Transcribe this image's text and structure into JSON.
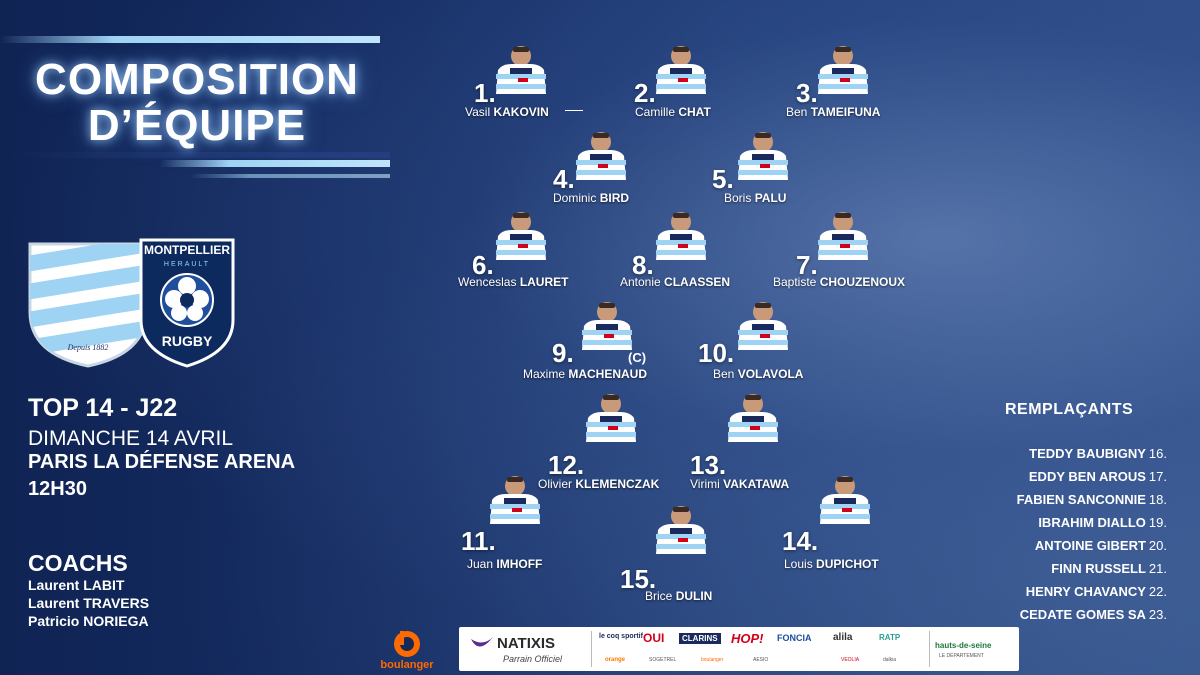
{
  "title": {
    "line1": "COMPOSITION",
    "line2": "D’ÉQUIPE"
  },
  "logos": {
    "home": {
      "name": "racing-92-logo",
      "motto": "Depuis 1882",
      "colors": [
        "#9fd3f3",
        "#ffffff"
      ]
    },
    "away": {
      "name": "montpellier-herault-logo",
      "top_text": "MONTPELLIER",
      "sub_text": "HERAULT",
      "bottom_text": "RUGBY",
      "color": "#1f4f9c"
    }
  },
  "match": {
    "competition": "TOP 14 - J22",
    "date": "DIMANCHE 14 AVRIL",
    "venue": "PARIS LA DÉFENSE ARENA",
    "time": "12H30"
  },
  "coaches": {
    "title": "COACHS",
    "names": [
      "Laurent LABIT",
      "Laurent TRAVERS",
      "Patricio NORIEGA"
    ]
  },
  "players": [
    {
      "number": "1.",
      "first": "Vasil",
      "last": "KAKOVIN"
    },
    {
      "number": "2.",
      "first": "Camille",
      "last": "CHAT"
    },
    {
      "number": "3.",
      "first": "Ben",
      "last": "TAMEIFUNA"
    },
    {
      "number": "4.",
      "first": "Dominic",
      "last": "BIRD"
    },
    {
      "number": "5.",
      "first": "Boris",
      "last": "PALU"
    },
    {
      "number": "6.",
      "first": "Wenceslas",
      "last": "LAURET"
    },
    {
      "number": "8.",
      "first": "Antonie",
      "last": "CLAASSEN"
    },
    {
      "number": "7.",
      "first": "Baptiste",
      "last": "CHOUZENOUX"
    },
    {
      "number": "9.",
      "first": "Maxime",
      "last": "MACHENAUD"
    },
    {
      "number": "10.",
      "first": "Ben",
      "last": "VOLAVOLA"
    },
    {
      "number": "12.",
      "first": "Olivier",
      "last": "KLEMENCZAK"
    },
    {
      "number": "13.",
      "first": "Virimi",
      "last": "VAKATAWA"
    },
    {
      "number": "11.",
      "first": "Juan",
      "last": "IMHOFF"
    },
    {
      "number": "14.",
      "first": "Louis",
      "last": "DUPICHOT"
    },
    {
      "number": "15.",
      "first": "Brice",
      "last": "DULIN"
    }
  ],
  "captain_mark": "(C)",
  "substitutes": {
    "title": "REMPLAÇANTS",
    "list": [
      {
        "name": "TEDDY BAUBIGNY",
        "number": "16."
      },
      {
        "name": "EDDY BEN AROUS",
        "number": "17."
      },
      {
        "name": "FABIEN SANCONNIE",
        "number": "18."
      },
      {
        "name": "IBRAHIM DIALLO",
        "number": "19."
      },
      {
        "name": "ANTOINE GIBERT",
        "number": "20."
      },
      {
        "name": "FINN RUSSELL",
        "number": "21."
      },
      {
        "name": "HENRY CHAVANCY",
        "number": "22."
      },
      {
        "name": "CEDATE GOMES SA",
        "number": "23."
      }
    ]
  },
  "sponsors": {
    "main": "boulanger",
    "official_partner": "NATIXIS",
    "official_partner_sub": "Parrain Officiel",
    "partners": [
      "le coq sportif",
      "OUI",
      "CLARINS",
      "HOP!",
      "FONCIA",
      "alila",
      "RATP",
      "hauts-de-seine"
    ],
    "partners_small": [
      "orange",
      "SOGETREL",
      "boulanger",
      "AESIO",
      "VEOLIA",
      "dalkia"
    ],
    "region_sub": "LE DÉPARTEMENT"
  },
  "colors": {
    "jersey_sky": "#9fd3f3",
    "navy": "#14295a",
    "white": "#ffffff"
  }
}
